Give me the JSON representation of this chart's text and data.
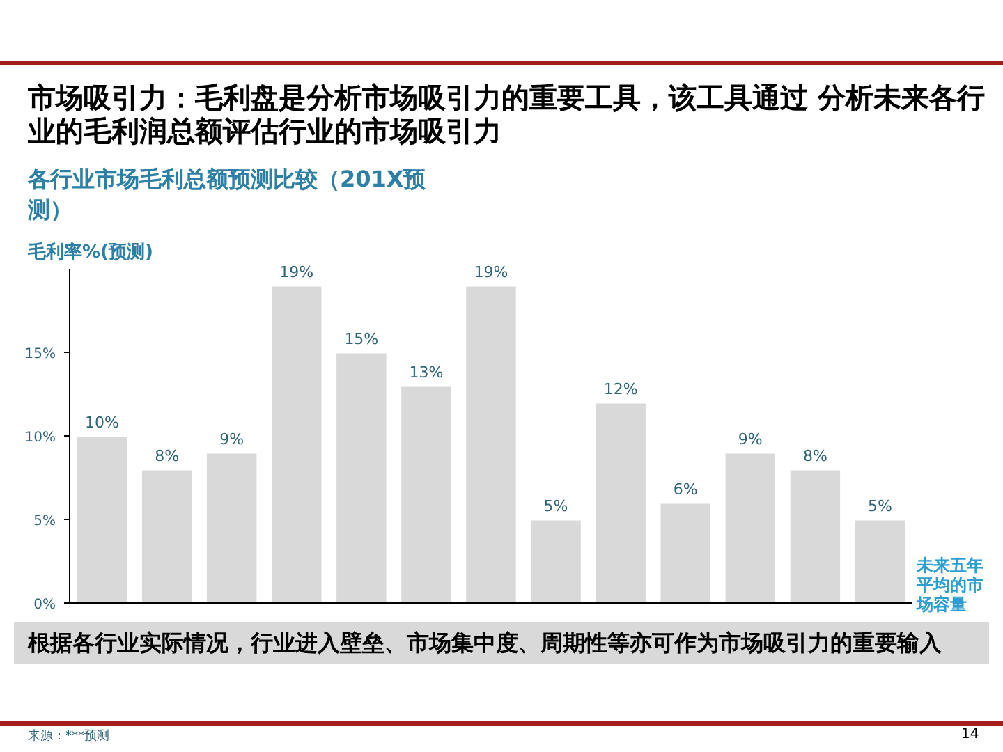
{
  "chart_data": {
    "type": "bar",
    "categories": [
      null,
      null,
      null,
      null,
      null,
      null,
      null,
      null,
      null,
      null,
      null,
      null,
      null
    ],
    "title": "市场吸引力：毛利盘是分析市场吸引力的重要工具，该工具通过 分析未来各行业的毛利润总额评估行业的市场吸引力",
    "subtitle": "各行业市场毛利总额预测比较（201X预测）",
    "ylabel": "毛利率%(预测)",
    "xlabel": "未来五年平均的市场容量",
    "values": [
      10,
      8,
      9,
      19,
      15,
      13,
      19,
      5,
      12,
      6,
      9,
      8,
      5
    ],
    "value_labels": [
      "10%",
      "8%",
      "9%",
      "19%",
      "15%",
      "13%",
      "19%",
      "5%",
      "12%",
      "6%",
      "9%",
      "8%",
      "5%"
    ],
    "color": "#d9d9d9",
    "ylim": [
      0,
      20
    ],
    "yticks": [
      {
        "value": 0,
        "label": "0%"
      },
      {
        "value": 5,
        "label": "5%"
      },
      {
        "value": 10,
        "label": "10%"
      },
      {
        "value": 15,
        "label": "15%"
      }
    ],
    "tick_labels": "y",
    "annotations": [
      "根据各行业实际情况，行业进入壁垒、市场集中度、周期性等亦可作为市场吸引力的重要输入",
      "来源：***预测",
      "14"
    ]
  }
}
